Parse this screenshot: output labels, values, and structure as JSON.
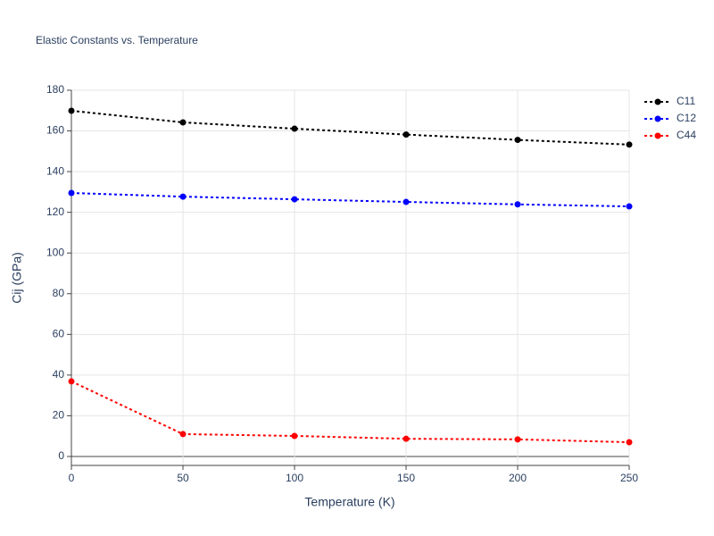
{
  "chart_data": {
    "type": "line",
    "title": "Elastic Constants vs. Temperature",
    "x_label": "Temperature (K)",
    "y_label": "Cij (GPa)",
    "x": [
      0,
      50,
      100,
      150,
      200,
      250
    ],
    "series": [
      {
        "name": "C11",
        "color": "#000000",
        "values": [
          169.9,
          164.2,
          161.1,
          158.2,
          155.6,
          153.3
        ]
      },
      {
        "name": "C12",
        "color": "#0000ff",
        "values": [
          129.5,
          127.7,
          126.4,
          125.1,
          123.9,
          122.9
        ]
      },
      {
        "name": "C44",
        "color": "#ff0000",
        "values": [
          36.9,
          11,
          10.1,
          8.7,
          8.4,
          7
        ]
      }
    ],
    "xlim": [
      0,
      250
    ],
    "xticks": [
      0,
      50,
      100,
      150,
      200,
      250
    ],
    "ylim": [
      -4.4,
      180
    ],
    "yticks": [
      0,
      20,
      40,
      60,
      80,
      100,
      120,
      140,
      160,
      180
    ],
    "grid": true,
    "legend": "top-right",
    "line_style": "dotted"
  }
}
